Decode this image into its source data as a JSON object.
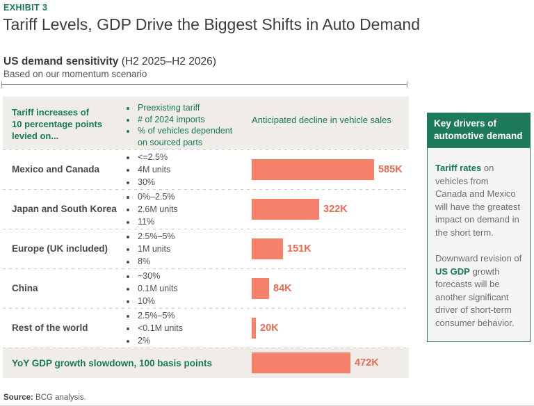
{
  "header": {
    "exhibit_label": "EXHIBIT 3",
    "title": "Tariff Levels, GDP Drive the Biggest Shifts in Auto Demand",
    "section_heading": "US demand sensitivity ",
    "section_heading_paren": "(H2 2025–H2 2026)",
    "section_subtitle": "Based on our momentum scenario"
  },
  "table": {
    "col1_header": "Tariff increases of\n10 percentage points\nlevied on...",
    "col2_header_bullets": [
      "Preexisting tariff",
      "# of 2024 imports",
      "% of vehicles dependent on sourced parts"
    ],
    "col3_header": "Anticipated decline in vehicle sales"
  },
  "chart_data": {
    "type": "bar",
    "orientation": "horizontal",
    "title": "US demand sensitivity (H2 2025–H2 2026)",
    "value_axis_label": "Anticipated decline in vehicle sales",
    "unit": "thousand vehicles",
    "xlim": [
      0,
      585
    ],
    "rows": [
      {
        "label": "Mexico and Canada",
        "bullets": [
          "<=2.5%",
          "4M units",
          "30%"
        ],
        "value": 585,
        "value_label": "585K"
      },
      {
        "label": "Japan and South Korea",
        "bullets": [
          "0%–2.5%",
          "2.6M units",
          "11%"
        ],
        "value": 322,
        "value_label": "322K"
      },
      {
        "label": "Europe (UK included)",
        "bullets": [
          "2.5%–5%",
          "1M units",
          "8%"
        ],
        "value": 151,
        "value_label": "151K"
      },
      {
        "label": "China",
        "bullets": [
          "~30%",
          "0.1M units",
          "10%"
        ],
        "value": 84,
        "value_label": "84K"
      },
      {
        "label": "Rest of the world",
        "bullets": [
          "2.5%–5%",
          "<0.1M units",
          "2%"
        ],
        "value": 20,
        "value_label": "20K"
      }
    ],
    "summary_row": {
      "label": "YoY GDP growth slowdown, 100 basis points",
      "value": 472,
      "value_label": "472K"
    },
    "bar_color": "#f5816a",
    "bar_label_color": "#ee6950"
  },
  "sidebar": {
    "header": "Key drivers of automotive demand",
    "paragraphs": [
      {
        "prefix": "",
        "highlight": "Tariff rates",
        "rest": " on vehicles from Canada and Mexico will have the greatest impact on demand in the short term."
      },
      {
        "prefix": "Downward revision of ",
        "highlight": "US GDP",
        "rest": " growth forecasts will be another significant driver of short-term consumer behavior."
      }
    ]
  },
  "footer": {
    "source_label": "Source:",
    "source_text": " BCG analysis."
  },
  "colors": {
    "accent_green": "#177b57",
    "sidebar_header_green": "#1e7b5a",
    "beige_row": "#f0ede8",
    "bar_orange": "#f5816a",
    "bar_label_orange": "#ee6950"
  }
}
